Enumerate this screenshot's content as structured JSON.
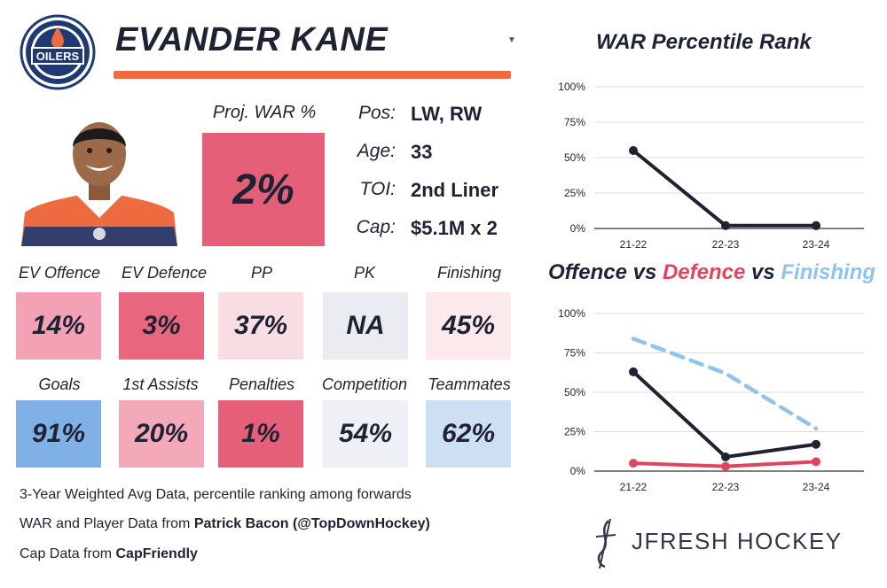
{
  "header": {
    "player_name": "EVANDER KANE",
    "team_logo_text": "OILERS"
  },
  "proj_war": {
    "label": "Proj. WAR %",
    "value": "2%"
  },
  "info": [
    {
      "key": "Pos:",
      "value": "LW, RW"
    },
    {
      "key": "Age:",
      "value": "33"
    },
    {
      "key": "TOI:",
      "value": "2nd Liner"
    },
    {
      "key": "Cap:",
      "value": "$5.1M x 2"
    }
  ],
  "stats_row1": [
    {
      "label": "EV Offence",
      "value": "14%",
      "color": "#f2a2b4"
    },
    {
      "label": "EV Defence",
      "value": "3%",
      "color": "#e8677f"
    },
    {
      "label": "PP",
      "value": "37%",
      "color": "#f8dde3"
    },
    {
      "label": "PK",
      "value": "NA",
      "color": "#eaecf1"
    },
    {
      "label": "Finishing",
      "value": "45%",
      "color": "#fbe9ec"
    }
  ],
  "stats_row2": [
    {
      "label": "Goals",
      "value": "91%",
      "color": "#7fb1e6"
    },
    {
      "label": "1st Assists",
      "value": "20%",
      "color": "#f3a9b8"
    },
    {
      "label": "Penalties",
      "value": "1%",
      "color": "#e55f79"
    },
    {
      "label": "Competition",
      "value": "54%",
      "color": "#eef0f5"
    },
    {
      "label": "Teammates",
      "value": "62%",
      "color": "#cde0f3"
    }
  ],
  "footer": {
    "line1": "3-Year Weighted Avg Data, percentile ranking among forwards",
    "line2_prefix": "WAR and Player Data from ",
    "line2_bold": "Patrick Bacon (@TopDownHockey)",
    "line3_prefix": "Cap Data from ",
    "line3_bold": "CapFriendly",
    "brand": "JFRESH HOCKEY"
  },
  "colors": {
    "accent_orange": "#ee6a3f",
    "navy": "#1f2233",
    "defence_red": "#e0455f",
    "finishing_blue": "#8fc4ec"
  },
  "chart_titles": {
    "war": "WAR Percentile Rank",
    "ovd_offence": "Offence",
    "ovd_vs1": " vs ",
    "ovd_defence": "Defence",
    "ovd_vs2": " vs ",
    "ovd_finishing": "Finishing"
  },
  "chart_data": [
    {
      "type": "line",
      "title": "WAR Percentile Rank",
      "categories": [
        "21-22",
        "22-23",
        "23-24"
      ],
      "yticks": [
        "0%",
        "25%",
        "50%",
        "75%",
        "100%"
      ],
      "ylim": [
        0,
        100
      ],
      "grid": true,
      "series": [
        {
          "values": [
            55,
            2,
            2
          ],
          "color": "#1f2233",
          "dashed": false
        }
      ]
    },
    {
      "type": "line",
      "categories": [
        "21-22",
        "22-23",
        "23-24"
      ],
      "yticks": [
        "0%",
        "25%",
        "50%",
        "75%",
        "100%"
      ],
      "ylim": [
        0,
        100
      ],
      "grid": true,
      "series": [
        {
          "name": "Offence",
          "values": [
            63,
            9,
            17
          ],
          "color": "#1f2233",
          "dashed": false
        },
        {
          "name": "Defence",
          "values": [
            5,
            3,
            6
          ],
          "color": "#e0455f",
          "dashed": false
        },
        {
          "name": "Finishing",
          "values": [
            84,
            62,
            27
          ],
          "color": "#8fc4ec",
          "dashed": true
        }
      ]
    }
  ]
}
